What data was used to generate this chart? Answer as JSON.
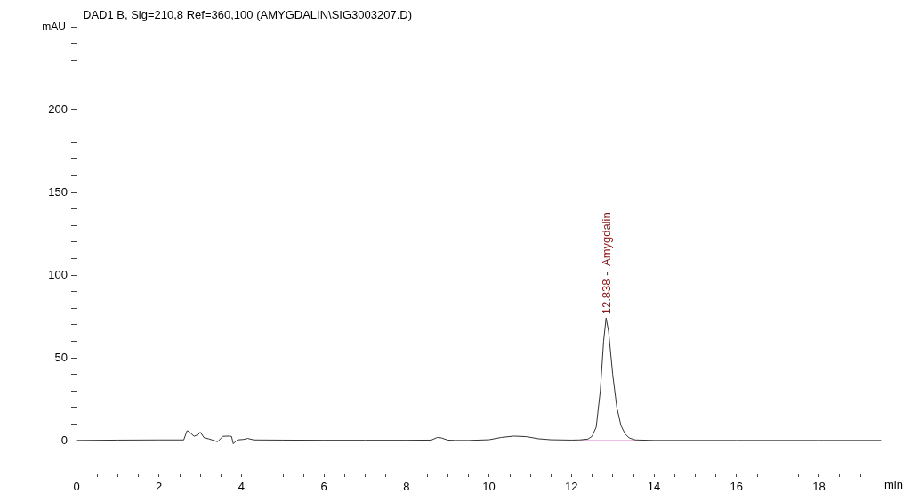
{
  "chart_data": {
    "type": "line",
    "title": "DAD1 B, Sig=210,8 Ref=360,100 (AMYGDALIN\\SIG3003207.D)",
    "xlabel": "min",
    "ylabel": "mAU",
    "series": [
      {
        "color": "#333333",
        "x": [
          0,
          1,
          2,
          2.6,
          2.68,
          2.72,
          2.85,
          2.95,
          3.0,
          3.1,
          3.2,
          3.3,
          3.42,
          3.55,
          3.7,
          3.76,
          3.8,
          3.9,
          4.05,
          4.15,
          4.3,
          5,
          6,
          7,
          8,
          8.6,
          8.75,
          8.85,
          9.0,
          9.2,
          9.5,
          10.0,
          10.3,
          10.6,
          10.9,
          11.2,
          11.5,
          12.0,
          12.2,
          12.4,
          12.5,
          12.6,
          12.7,
          12.78,
          12.84,
          12.9,
          13.0,
          13.1,
          13.2,
          13.3,
          13.4,
          13.55,
          14,
          16,
          18,
          19.5
        ],
        "values": [
          0,
          0.2,
          0.3,
          0.3,
          5.8,
          5.5,
          2.5,
          3.5,
          5.0,
          1.5,
          1.0,
          0.2,
          -0.8,
          2.5,
          2.6,
          2.4,
          -2,
          0.3,
          0.6,
          1.2,
          0.3,
          0.2,
          0.1,
          0.1,
          0.1,
          0.2,
          1.8,
          1.5,
          0.2,
          0.0,
          0.0,
          0.4,
          1.8,
          2.6,
          2.3,
          1.0,
          0.4,
          0.2,
          0.3,
          0.8,
          2.5,
          8,
          30,
          60,
          74,
          66,
          40,
          20,
          9,
          4,
          1.5,
          0.3,
          0,
          0,
          0,
          0
        ]
      },
      {
        "color": "#e8a0d8",
        "x": [
          12.2,
          13.55
        ],
        "values": [
          0,
          0
        ]
      }
    ],
    "xlim": [
      0,
      19.5
    ],
    "ylim": [
      -20,
      250
    ],
    "xticks": [
      0,
      {
        "value": 0.5,
        "label": null
      },
      {
        "value": 1,
        "label": null
      },
      {
        "value": 1.5,
        "label": null
      },
      2,
      {
        "value": 2.5,
        "label": null
      },
      {
        "value": 3,
        "label": null
      },
      {
        "value": 3.5,
        "label": null
      },
      4,
      {
        "value": 4.5,
        "label": null
      },
      {
        "value": 5,
        "label": null
      },
      {
        "value": 5.5,
        "label": null
      },
      6,
      {
        "value": 6.5,
        "label": null
      },
      {
        "value": 7,
        "label": null
      },
      {
        "value": 7.5,
        "label": null
      },
      8,
      {
        "value": 8.5,
        "label": null
      },
      {
        "value": 9,
        "label": null
      },
      {
        "value": 9.5,
        "label": null
      },
      10,
      {
        "value": 10.5,
        "label": null
      },
      {
        "value": 11,
        "label": null
      },
      {
        "value": 11.5,
        "label": null
      },
      12,
      {
        "value": 12.5,
        "label": null
      },
      {
        "value": 13,
        "label": null
      },
      {
        "value": 13.5,
        "label": null
      },
      14,
      {
        "value": 14.5,
        "label": null
      },
      {
        "value": 15,
        "label": null
      },
      {
        "value": 15.5,
        "label": null
      },
      16,
      {
        "value": 16.5,
        "label": null
      },
      {
        "value": 17,
        "label": null
      },
      {
        "value": 17.5,
        "label": null
      },
      18,
      {
        "value": 18.5,
        "label": null
      },
      {
        "value": 19,
        "label": null
      }
    ],
    "yticks": [
      {
        "value": -10,
        "label": null
      },
      0,
      {
        "value": 10,
        "label": null
      },
      {
        "value": 20,
        "label": null
      },
      {
        "value": 30,
        "label": null
      },
      {
        "value": 40,
        "label": null
      },
      50,
      {
        "value": 60,
        "label": null
      },
      {
        "value": 70,
        "label": null
      },
      {
        "value": 80,
        "label": null
      },
      {
        "value": 90,
        "label": null
      },
      100,
      {
        "value": 110,
        "label": null
      },
      {
        "value": 120,
        "label": null
      },
      {
        "value": 130,
        "label": null
      },
      {
        "value": 140,
        "label": null
      },
      150,
      {
        "value": 160,
        "label": null
      },
      {
        "value": 170,
        "label": null
      },
      {
        "value": 180,
        "label": null
      },
      {
        "value": 190,
        "label": null
      },
      200,
      {
        "value": 210,
        "label": null
      },
      {
        "value": 220,
        "label": null
      },
      {
        "value": 230,
        "label": null
      },
      {
        "value": 240,
        "label": null
      },
      {
        "value": 250,
        "label": null
      }
    ],
    "annotations": [
      {
        "text": "12.838 -  Amygdalin",
        "x": 12.838,
        "y": 74
      }
    ],
    "grid": false,
    "marker": "none",
    "line_style": "solid"
  }
}
